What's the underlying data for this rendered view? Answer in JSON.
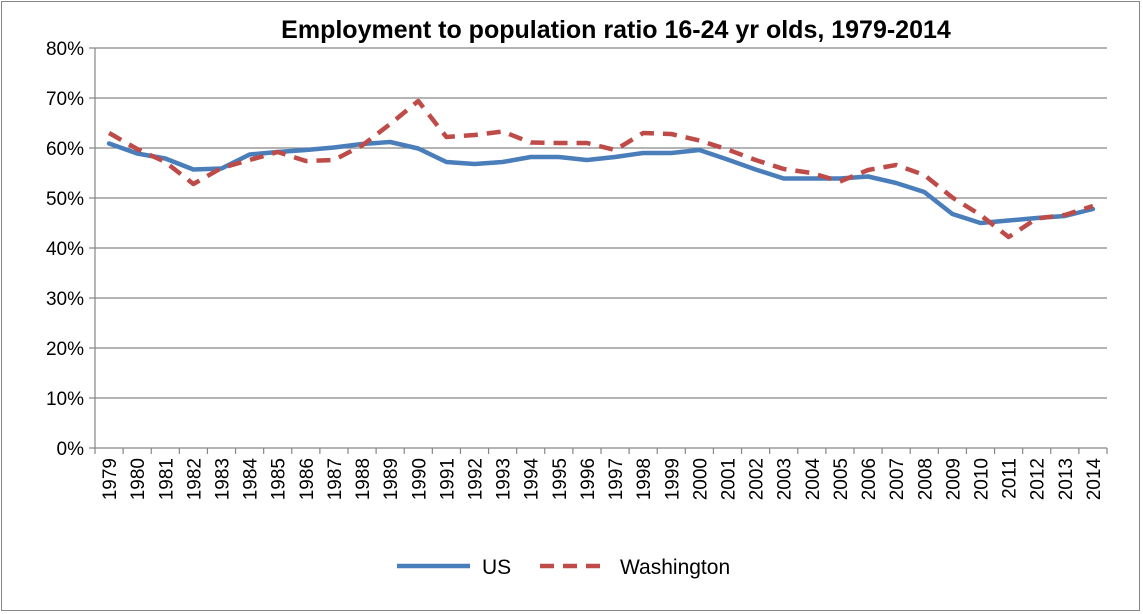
{
  "chart_data": {
    "type": "line",
    "title": "Employment to population ratio 16-24 yr olds, 1979-2014",
    "xlabel": "",
    "ylabel": "",
    "ylim": [
      0,
      80
    ],
    "y_ticks": [
      "0%",
      "10%",
      "20%",
      "30%",
      "40%",
      "50%",
      "60%",
      "70%",
      "80%"
    ],
    "grid": "horizontal",
    "legend_position": "bottom",
    "categories": [
      "1979",
      "1980",
      "1981",
      "1982",
      "1983",
      "1984",
      "1985",
      "1986",
      "1987",
      "1988",
      "1989",
      "1990",
      "1991",
      "1992",
      "1993",
      "1994",
      "1995",
      "1996",
      "1997",
      "1998",
      "1999",
      "2000",
      "2001",
      "2002",
      "2003",
      "2004",
      "2005",
      "2006",
      "2007",
      "2008",
      "2009",
      "2010",
      "2011",
      "2012",
      "2013",
      "2014"
    ],
    "series": [
      {
        "name": "US",
        "color": "#4a7ebb",
        "style": "solid",
        "values": [
          60.9,
          58.9,
          57.9,
          55.7,
          55.9,
          58.7,
          59.2,
          59.6,
          60.1,
          60.8,
          61.2,
          59.9,
          57.2,
          56.8,
          57.2,
          58.2,
          58.2,
          57.6,
          58.2,
          59.0,
          59.0,
          59.6,
          57.7,
          55.7,
          53.9,
          53.9,
          53.9,
          54.3,
          53.0,
          51.2,
          46.8,
          45.0,
          45.5,
          46.0,
          46.4,
          47.8
        ]
      },
      {
        "name": "Washington",
        "color": "#be4b48",
        "style": "dashed",
        "values": [
          63.0,
          59.8,
          57.2,
          52.8,
          56.0,
          57.6,
          59.2,
          57.4,
          57.6,
          60.5,
          64.8,
          69.4,
          62.2,
          62.6,
          63.3,
          61.1,
          61.0,
          61.0,
          59.6,
          63.0,
          62.8,
          61.5,
          59.7,
          57.6,
          55.8,
          55.0,
          53.3,
          55.6,
          56.6,
          54.6,
          50.1,
          46.6,
          42.2,
          45.9,
          46.6,
          48.4
        ]
      }
    ]
  }
}
